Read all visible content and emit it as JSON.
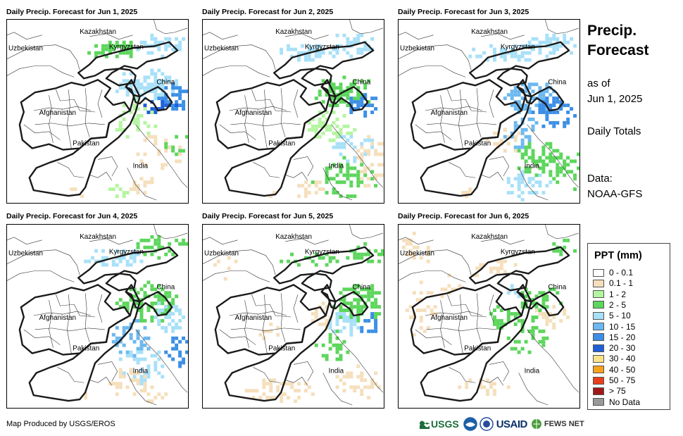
{
  "side": {
    "title_line1": "Precip.",
    "title_line2": "Forecast",
    "asof_line1": "as of",
    "asof_line2": "Jun 1, 2025",
    "totals": "Daily Totals",
    "data_line1": "Data:",
    "data_line2": "NOAA-GFS"
  },
  "panels": [
    {
      "title": "Daily Precip. Forecast for Jun 1, 2025"
    },
    {
      "title": "Daily Precip. Forecast for Jun 2, 2025"
    },
    {
      "title": "Daily Precip. Forecast for Jun 3, 2025"
    },
    {
      "title": "Daily Precip. Forecast for Jun 4, 2025"
    },
    {
      "title": "Daily Precip. Forecast for Jun 5, 2025"
    },
    {
      "title": "Daily Precip. Forecast for Jun 6, 2025"
    }
  ],
  "labels": {
    "kazakhstan": "Kazakhstan",
    "uzbekistan": "Uzbekistan",
    "kyrgyzstan": "Kyrgyzstan",
    "china": "China",
    "afghanistan": "Afghanistan",
    "pakistan": "Pakistan",
    "india": "India"
  },
  "legend": {
    "title": "PPT (mm)",
    "items": [
      {
        "label": "0 - 0.1",
        "color": "#ffffff"
      },
      {
        "label": "0.1 - 1",
        "color": "#f5dfbc"
      },
      {
        "label": "1 - 2",
        "color": "#b4f5a0"
      },
      {
        "label": "2 - 5",
        "color": "#5cd65c"
      },
      {
        "label": "5 - 10",
        "color": "#a8e0f8"
      },
      {
        "label": "10 - 15",
        "color": "#6cb8f0"
      },
      {
        "label": "15 - 20",
        "color": "#3c8fe6"
      },
      {
        "label": "20 - 30",
        "color": "#1f5fd9"
      },
      {
        "label": "30 - 40",
        "color": "#fbe38a"
      },
      {
        "label": "40 - 50",
        "color": "#f7a21c"
      },
      {
        "label": "50 - 75",
        "color": "#e8401c"
      },
      {
        "label": "> 75",
        "color": "#a01818"
      },
      {
        "label": "No Data",
        "color": "#999999"
      }
    ]
  },
  "footer": {
    "credit": "Map Produced by USGS/EROS",
    "usgs": "USGS",
    "usaid": "USAID",
    "fewsnet": "FEWS NET"
  }
}
